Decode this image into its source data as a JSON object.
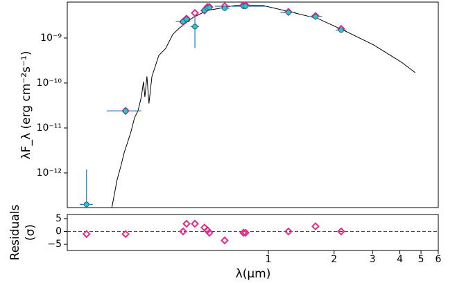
{
  "chart_data": [
    {
      "type": "sed",
      "ylabel": "λF_λ (erg cm⁻²s⁻¹)",
      "xlim": [
        0.12,
        6.0
      ],
      "ylim": [
        1.7e-13,
        6.3e-09
      ],
      "log_x": true,
      "log_y": true,
      "yticks": [
        {
          "value": 1e-09,
          "label": "10⁻⁹"
        },
        {
          "value": 1e-10,
          "label": "10⁻¹⁰"
        },
        {
          "value": 1e-11,
          "label": "10⁻¹¹"
        },
        {
          "value": 1e-12,
          "label": "10⁻¹²"
        }
      ],
      "model": {
        "color": "#000000",
        "x": [
          0.192,
          0.203,
          0.211,
          0.219,
          0.227,
          0.235,
          0.244,
          0.253,
          0.262,
          0.268,
          0.272,
          0.278,
          0.284,
          0.293,
          0.304,
          0.315,
          0.339,
          0.365,
          0.393,
          0.454,
          0.526,
          0.705,
          0.944,
          1.264,
          1.69,
          2.27,
          3.04,
          4.07,
          4.71
        ],
        "values": [
          1.7e-13,
          7.1e-13,
          1.4e-12,
          2.9e-12,
          4.9e-12,
          8.3e-12,
          1.7e-11,
          2.4e-11,
          4.9e-11,
          1.07e-10,
          4.9e-11,
          1.4e-10,
          3.5e-11,
          1.4e-10,
          2.4e-10,
          4.1e-10,
          5.9e-10,
          1.2e-09,
          1.7e-09,
          2.9e-09,
          4.1e-09,
          5.3e-09,
          5.3e-09,
          3.8e-09,
          2.7e-09,
          1.4e-09,
          7e-10,
          2.9e-10,
          1.7e-10
        ]
      },
      "observed": {
        "color": "#2ec4cc",
        "errcolor": "#1f77b4",
        "x": [
          0.147,
          0.222,
          0.407,
          0.422,
          0.461,
          0.51,
          0.526,
          0.537,
          0.631,
          0.769,
          0.786,
          1.236,
          1.644,
          2.155
        ],
        "values": [
          2e-13,
          2.4e-11,
          2.3e-09,
          2.6e-09,
          1.8e-09,
          4.1e-09,
          4.6e-09,
          4.8e-09,
          4.6e-09,
          5.1e-09,
          5.1e-09,
          3.7e-09,
          3e-09,
          1.5e-09
        ],
        "xerr": [
          0.01,
          0.04,
          0.03,
          0.02,
          0.02,
          0.02,
          0.02,
          0.02,
          0.03,
          0.2,
          0.03,
          0.1,
          0.12,
          0.12
        ],
        "yerr": [
          1e-12,
          0,
          0,
          0,
          1.2e-09,
          0,
          0,
          0,
          0,
          0,
          0,
          0,
          0,
          0
        ]
      },
      "synthetic": {
        "color": "#e7298a",
        "values": [
          null,
          2.4e-11,
          2.3e-09,
          2.7e-09,
          3.6e-09,
          4.1e-09,
          4.9e-09,
          4.9e-09,
          5.1e-09,
          5.4e-09,
          5.4e-09,
          3.8e-09,
          3.1e-09,
          1.6e-09
        ]
      }
    },
    {
      "type": "residual",
      "ylabel": [
        "Residuals",
        "(σ)"
      ],
      "xlabel": "λ(μm)",
      "xlim": [
        0.12,
        6.0
      ],
      "ylim": [
        -7.4,
        6.6
      ],
      "yticks": [
        5,
        0,
        {
          "value": -5,
          "label": "−5"
        }
      ],
      "xticks": [
        1,
        2,
        3,
        4,
        5,
        6
      ],
      "color": "#e7298a",
      "values": [
        -1,
        -1,
        0,
        3,
        3,
        1.5,
        0.5,
        -0.5,
        -3.5,
        -0.5,
        -0.5,
        0,
        2,
        0
      ]
    }
  ]
}
